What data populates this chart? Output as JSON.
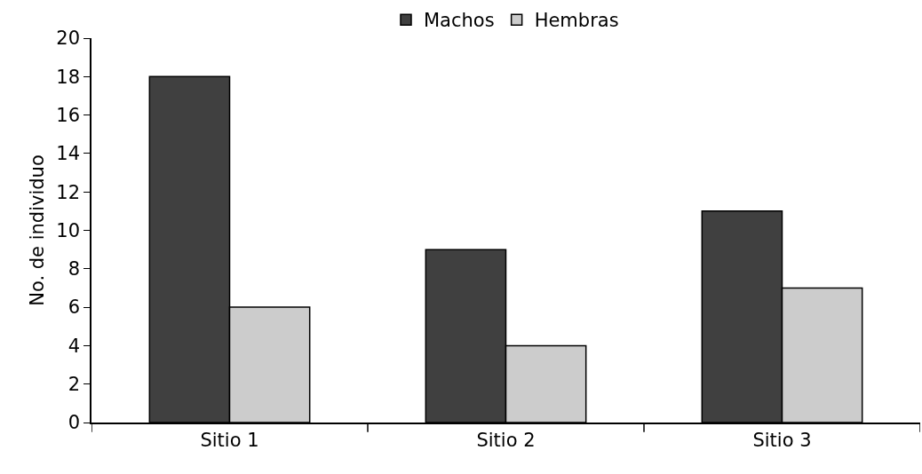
{
  "chart_data": {
    "type": "bar",
    "ylabel": "No. de individuo",
    "categories": [
      "Sitio 1",
      "Sitio 2",
      "Sitio 3"
    ],
    "series": [
      {
        "name": "Machos",
        "color": "#404040",
        "values": [
          18,
          9,
          11
        ]
      },
      {
        "name": "Hembras",
        "color": "#cccccc",
        "values": [
          6,
          4,
          7
        ]
      }
    ],
    "ylim": [
      0,
      20
    ],
    "yticks": [
      0,
      2,
      4,
      6,
      8,
      10,
      12,
      14,
      16,
      18,
      20
    ],
    "legend": "top"
  }
}
